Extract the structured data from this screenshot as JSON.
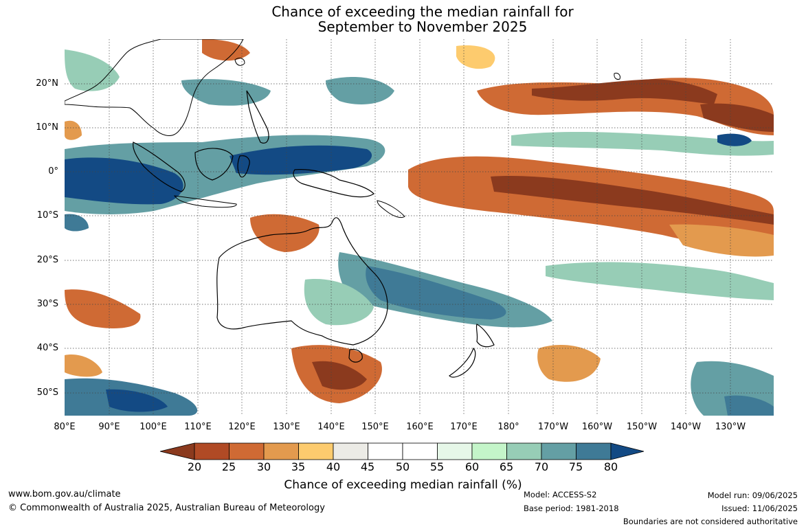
{
  "title": {
    "line1": "Chance of exceeding the median rainfall for",
    "line2": "September to November 2025"
  },
  "map": {
    "lat_labels": [
      "20°N",
      "10°N",
      "0°",
      "10°S",
      "20°S",
      "30°S",
      "40°S",
      "50°S"
    ],
    "lon_labels": [
      "80°E",
      "90°E",
      "100°E",
      "110°E",
      "120°E",
      "130°E",
      "140°E",
      "150°E",
      "160°E",
      "170°E",
      "180°",
      "170°W",
      "160°W",
      "150°W",
      "140°W",
      "130°W"
    ]
  },
  "colorbar": {
    "ticks": [
      "20",
      "25",
      "30",
      "35",
      "40",
      "45",
      "50",
      "55",
      "60",
      "65",
      "70",
      "75",
      "80"
    ],
    "colors": [
      "#8b3a1e",
      "#b04a25",
      "#cf6a34",
      "#e39a4e",
      "#fdcb6e",
      "#ecebe6",
      "#ffffff",
      "#ffffff",
      "#e6f7e8",
      "#c4f5c9",
      "#97cdb6",
      "#649fa4",
      "#3f7a96",
      "#134a84"
    ],
    "label": "Chance of exceeding median rainfall (%)"
  },
  "footer": {
    "website": "www.bom.gov.au/climate",
    "copyright": "© Commonwealth of Australia 2025, Australian Bureau of Meteorology",
    "model": "Model: ACCESS-S2",
    "base_period": "Base period: 1981-2018",
    "model_run": "Model run: 09/06/2025",
    "issued": "Issued: 11/06/2025",
    "disclaimer": "Boundaries are not considered authoritative"
  }
}
